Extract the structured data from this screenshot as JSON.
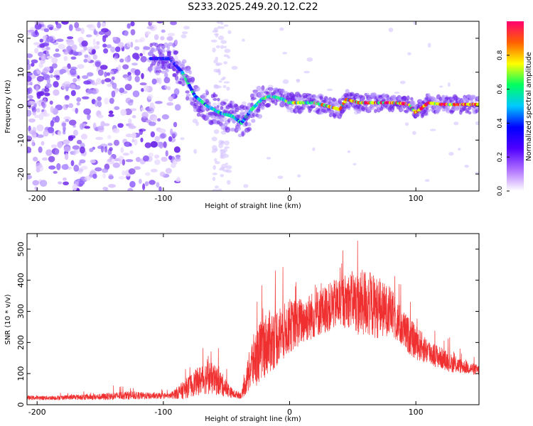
{
  "title": "S233.2025.249.20.12.C22",
  "chart_data": [
    {
      "type": "heatmap",
      "xlabel": "Height of straight line (km)",
      "ylabel": "Frequency (Hz)",
      "xlim": [
        -208,
        150
      ],
      "ylim": [
        -25,
        25
      ],
      "xticks": [
        -200,
        -100,
        0,
        100
      ],
      "yticks": [
        -20,
        -10,
        0,
        10,
        20
      ],
      "colorbar": {
        "label": "Normalized spectral amplitude",
        "range": [
          0,
          1
        ],
        "ticks": [
          "0.0",
          "0.2",
          "0.4",
          "0.6",
          "0.8"
        ],
        "colors": [
          "#ffffff",
          "#b070ff",
          "#5000ff",
          "#0000ff",
          "#00c8ff",
          "#00ff60",
          "#ffff00",
          "#ff6000",
          "#ff0070"
        ]
      },
      "ridge": {
        "x": [
          -95,
          -85,
          -75,
          -65,
          -55,
          -45,
          -38,
          -30,
          -22,
          -15,
          -5,
          0,
          10,
          20,
          30,
          40,
          45,
          55,
          65,
          75,
          85,
          95,
          100,
          110,
          120,
          130,
          140,
          150
        ],
        "y": [
          14,
          10,
          3,
          0,
          -2,
          -3,
          -5,
          -1,
          2,
          3,
          2,
          1,
          1,
          1,
          0,
          -1,
          2,
          1,
          1,
          1,
          1,
          0.5,
          -2,
          1,
          0.5,
          0.5,
          0.5,
          0.5
        ]
      }
    },
    {
      "type": "line",
      "xlabel": "Height of straight line (km)",
      "ylabel": "SNR (10 * v/v)",
      "xlim": [
        -208,
        150
      ],
      "ylim": [
        0,
        550
      ],
      "xticks": [
        -200,
        -100,
        0,
        100
      ],
      "yticks": [
        0,
        100,
        200,
        300,
        400,
        500
      ],
      "color": "#f03030",
      "series": [
        {
          "name": "SNR",
          "x": [
            -208,
            -190,
            -170,
            -150,
            -130,
            -110,
            -95,
            -85,
            -75,
            -65,
            -55,
            -45,
            -38,
            -30,
            -20,
            -10,
            0,
            10,
            20,
            30,
            40,
            50,
            55,
            60,
            70,
            80,
            90,
            100,
            110,
            120,
            130,
            140,
            150
          ],
          "y": [
            22,
            22,
            24,
            25,
            30,
            28,
            28,
            45,
            70,
            90,
            70,
            35,
            30,
            130,
            190,
            220,
            250,
            270,
            290,
            310,
            330,
            340,
            320,
            330,
            310,
            300,
            240,
            200,
            170,
            150,
            130,
            120,
            110
          ],
          "spread": [
            10,
            10,
            12,
            15,
            20,
            15,
            12,
            40,
            60,
            80,
            60,
            20,
            15,
            120,
            150,
            140,
            120,
            110,
            110,
            110,
            120,
            130,
            150,
            160,
            140,
            110,
            90,
            80,
            60,
            50,
            40,
            30,
            25
          ]
        }
      ]
    }
  ]
}
